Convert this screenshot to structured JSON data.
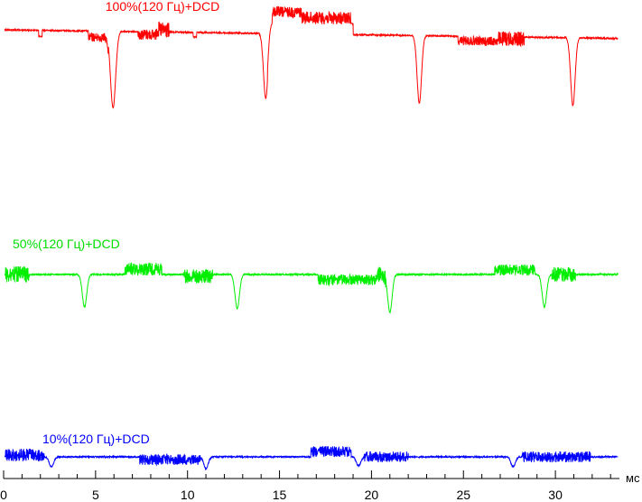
{
  "chart_data": {
    "type": "line",
    "xlabel": "мс",
    "xlim": [
      0,
      33.4
    ],
    "x_ticks": [
      0,
      5,
      10,
      15,
      20,
      25,
      30
    ],
    "tick_labels": [
      "0",
      "5",
      "10",
      "15",
      "20",
      "25",
      "30"
    ],
    "grid": false,
    "series": [
      {
        "name": "100%(120 Гц)+DCD",
        "color": "#ff0000",
        "base": 33,
        "slope": 0.14,
        "dips": [
          {
            "x": 5.95,
            "depth": 85,
            "width": 0.14
          },
          {
            "x": 14.25,
            "depth": 72,
            "width": 0.12
          },
          {
            "x": 22.6,
            "depth": 75,
            "width": 0.12
          },
          {
            "x": 30.95,
            "depth": 75,
            "width": 0.12
          }
        ],
        "noise_bands": [
          {
            "from": 4.6,
            "to": 5.7,
            "amp": 5,
            "offset": 7
          },
          {
            "from": 7.3,
            "to": 8.3,
            "amp": 6,
            "offset": 3
          },
          {
            "from": 8.3,
            "to": 9.0,
            "amp": 9,
            "offset": -2
          },
          {
            "from": 14.6,
            "to": 16.2,
            "amp": 6,
            "offset": -12
          },
          {
            "from": 16.2,
            "to": 18.9,
            "amp": 7,
            "offset": -6
          },
          {
            "from": 24.7,
            "to": 26.9,
            "amp": 5,
            "offset": 5
          },
          {
            "from": 26.9,
            "to": 28.3,
            "amp": 8,
            "offset": 2
          }
        ],
        "steps": [
          {
            "from": 1.9,
            "to": 2.1,
            "offset": 7
          },
          {
            "from": 10.3,
            "to": 10.5,
            "offset": 5
          },
          {
            "from": 14.35,
            "to": 19.0,
            "offset": -12
          }
        ]
      },
      {
        "name": "50%(120 Гц)+DCD",
        "color": "#00ee00",
        "base": 304,
        "slope": 0,
        "dips": [
          {
            "x": 4.4,
            "depth": 36,
            "width": 0.12
          },
          {
            "x": 12.7,
            "depth": 38,
            "width": 0.12
          },
          {
            "x": 21.0,
            "depth": 42,
            "width": 0.12
          },
          {
            "x": 29.4,
            "depth": 36,
            "width": 0.12
          }
        ],
        "noise_bands": [
          {
            "from": 0.1,
            "to": 1.4,
            "amp": 9,
            "offset": 0
          },
          {
            "from": 6.6,
            "to": 8.6,
            "amp": 7,
            "offset": -6
          },
          {
            "from": 9.8,
            "to": 11.4,
            "amp": 8,
            "offset": 2
          },
          {
            "from": 17.1,
            "to": 20.3,
            "amp": 6,
            "offset": 6
          },
          {
            "from": 20.3,
            "to": 20.8,
            "amp": 9,
            "offset": 0
          },
          {
            "from": 26.7,
            "to": 28.9,
            "amp": 6,
            "offset": -5
          },
          {
            "from": 29.8,
            "to": 31.1,
            "amp": 8,
            "offset": 0
          }
        ],
        "steps": []
      },
      {
        "name": "10%(120 Гц)+DCD",
        "color": "#0000ff",
        "base": 506,
        "slope": 0,
        "dips": [
          {
            "x": 2.6,
            "depth": 11,
            "width": 0.12
          },
          {
            "x": 11.0,
            "depth": 13,
            "width": 0.12
          },
          {
            "x": 19.3,
            "depth": 10,
            "width": 0.12
          },
          {
            "x": 27.7,
            "depth": 11,
            "width": 0.12
          }
        ],
        "noise_bands": [
          {
            "from": 0.1,
            "to": 2.2,
            "amp": 7,
            "offset": -2
          },
          {
            "from": 7.4,
            "to": 10.7,
            "amp": 6,
            "offset": 3
          },
          {
            "from": 16.7,
            "to": 18.9,
            "amp": 6,
            "offset": -6
          },
          {
            "from": 19.6,
            "to": 22.0,
            "amp": 6,
            "offset": 0
          },
          {
            "from": 28.2,
            "to": 31.9,
            "amp": 6,
            "offset": 0
          }
        ],
        "steps": []
      }
    ]
  }
}
